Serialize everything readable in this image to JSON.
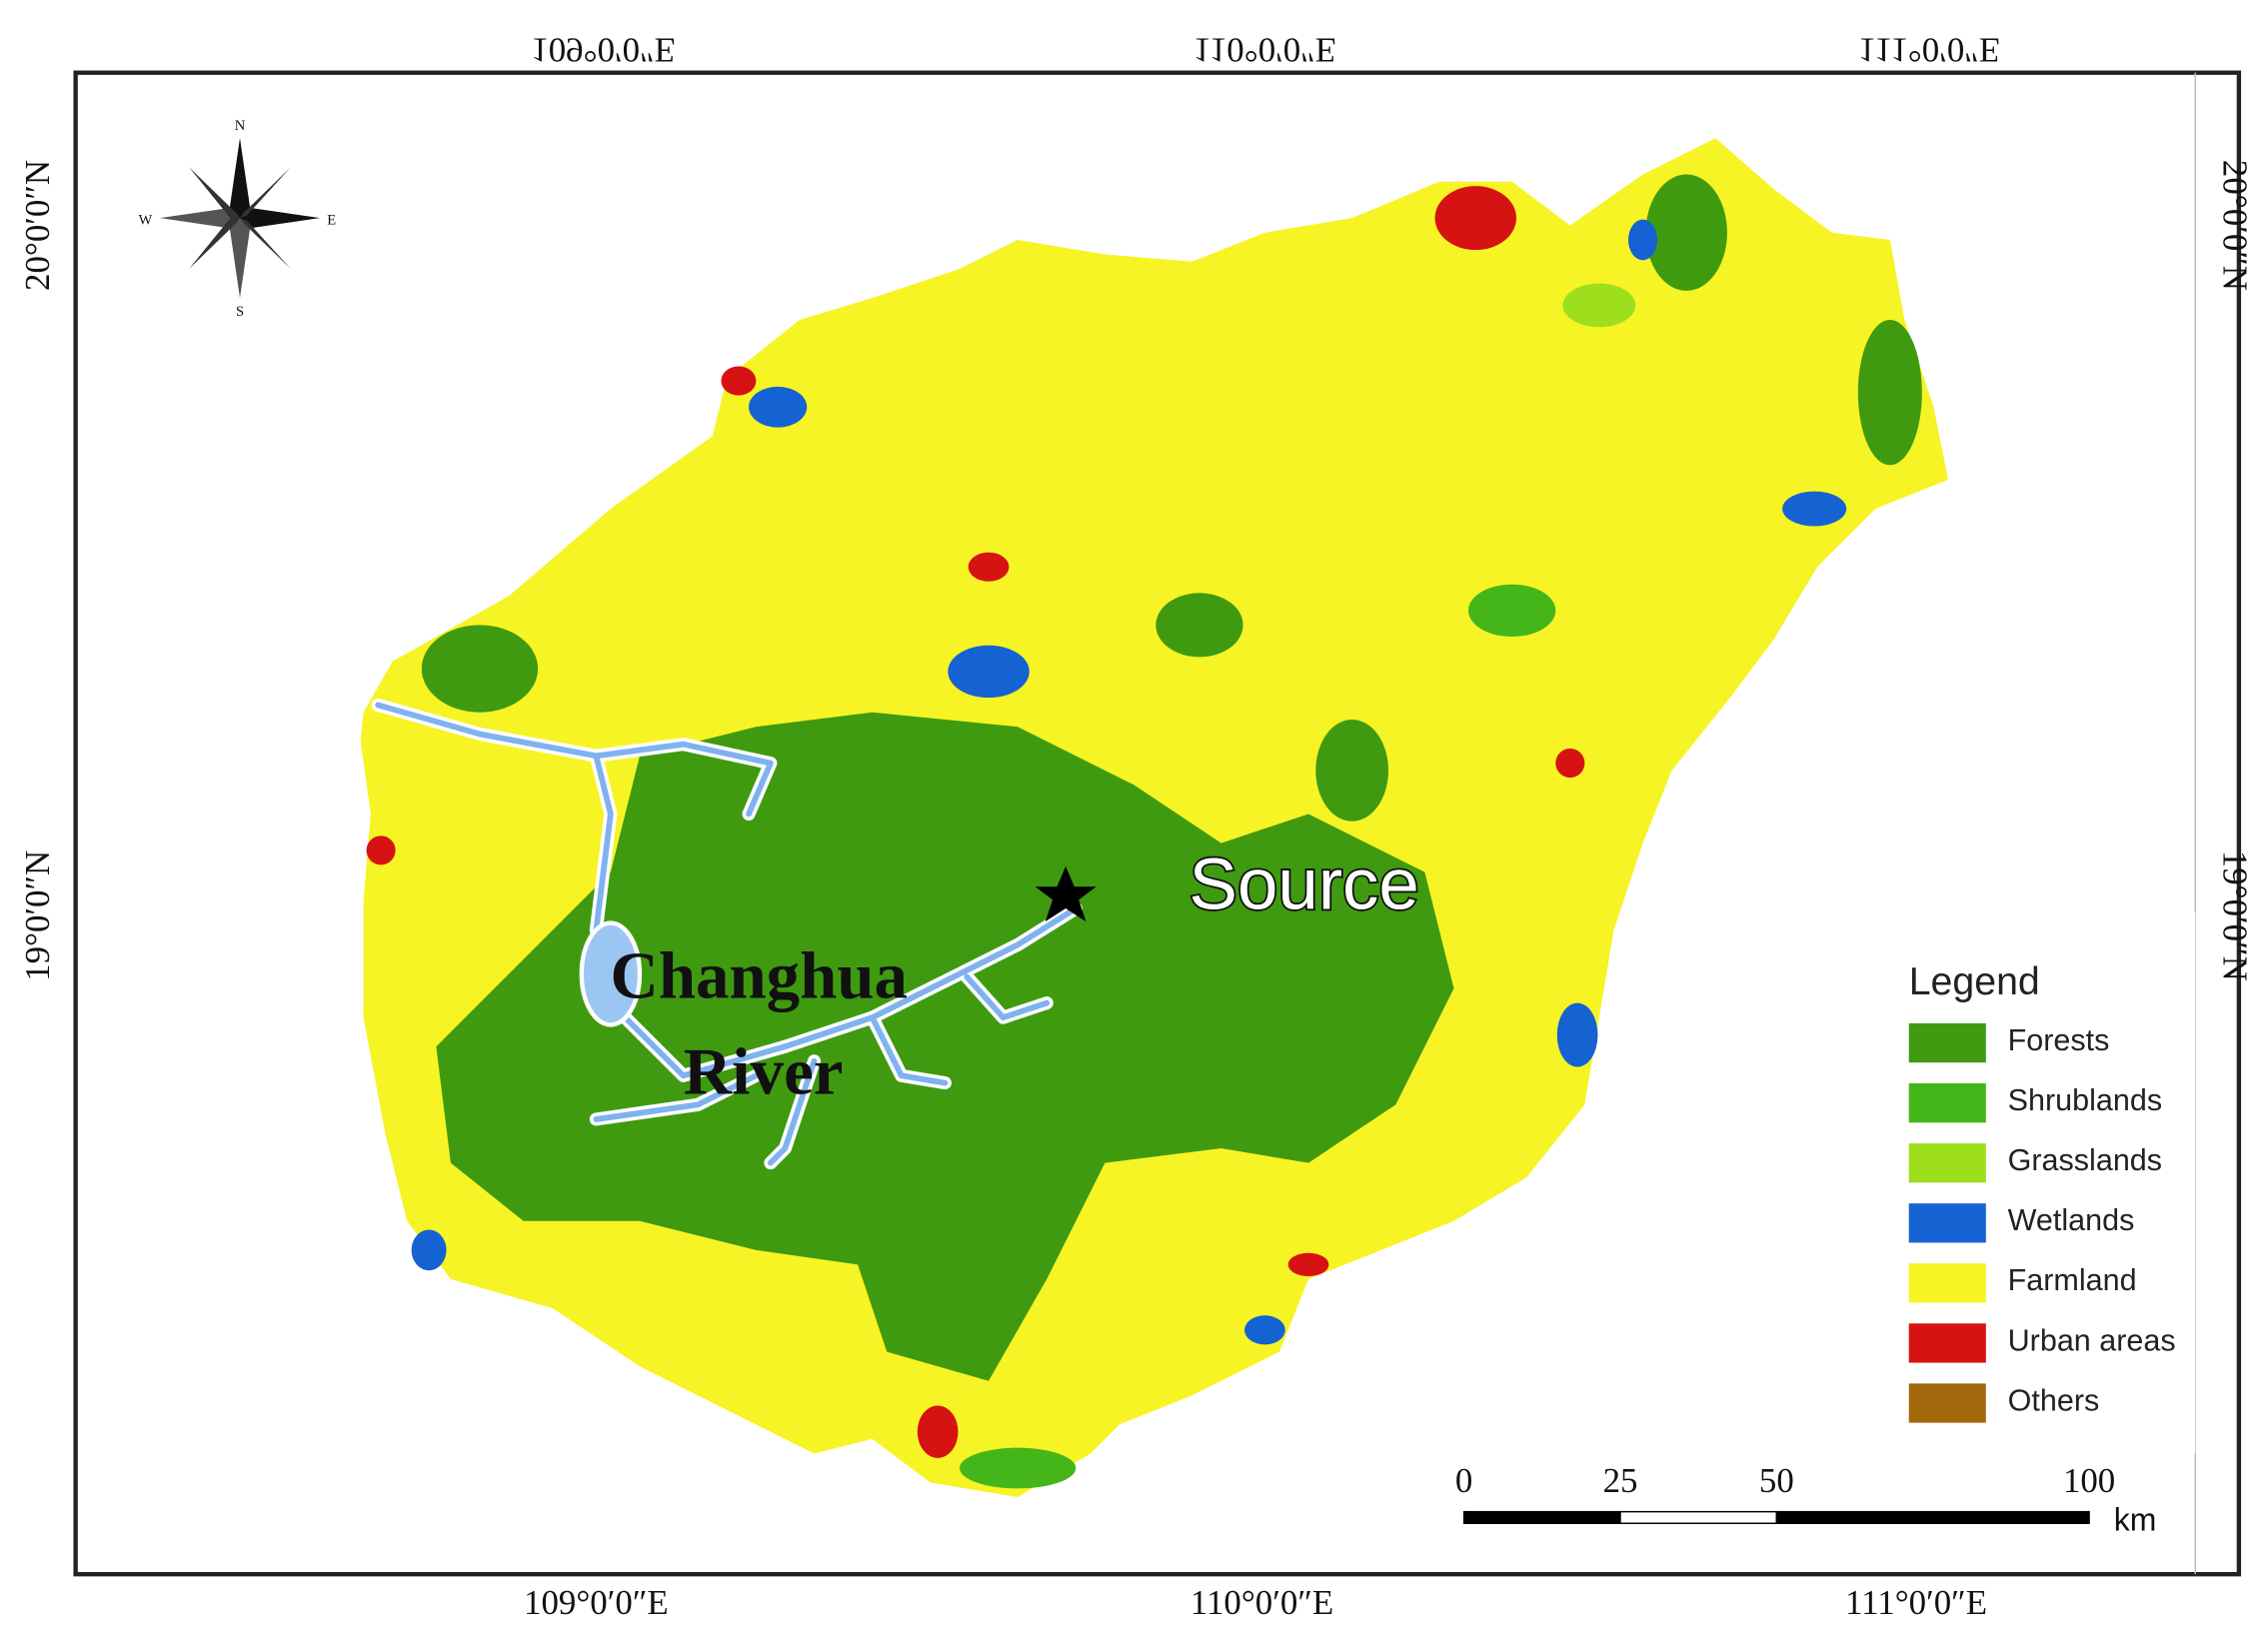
{
  "map": {
    "coordinate_labels": {
      "top": [
        "109°0′0″E",
        "110°0′0″E",
        "111°0′0″E"
      ],
      "bottom": [
        "109°0′0″E",
        "110°0′0″E",
        "111°0′0″E"
      ],
      "left": [
        "20°0′0″N",
        "19°0′0″N"
      ],
      "right": [
        "20°0′0″N",
        "19°0′0″N"
      ]
    },
    "compass": {
      "north": "N",
      "south": "S",
      "east": "E",
      "west": "W"
    },
    "annotations": {
      "river": [
        "Changhua",
        "River"
      ],
      "source": "Source"
    },
    "legend": {
      "title": "Legend",
      "items": [
        {
          "label": "Forests",
          "color": "#3f9a10"
        },
        {
          "label": "Shrublands",
          "color": "#44b61a"
        },
        {
          "label": "Grasslands",
          "color": "#9ddf1c"
        },
        {
          "label": "Wetlands",
          "color": "#1562d2"
        },
        {
          "label": "Farmland",
          "color": "#f6f424"
        },
        {
          "label": "Urban areas",
          "color": "#d71212"
        },
        {
          "label": "Others",
          "color": "#a2680c"
        }
      ]
    },
    "scale_bar": {
      "ticks": [
        0,
        25,
        50,
        100
      ],
      "unit": "km"
    }
  }
}
